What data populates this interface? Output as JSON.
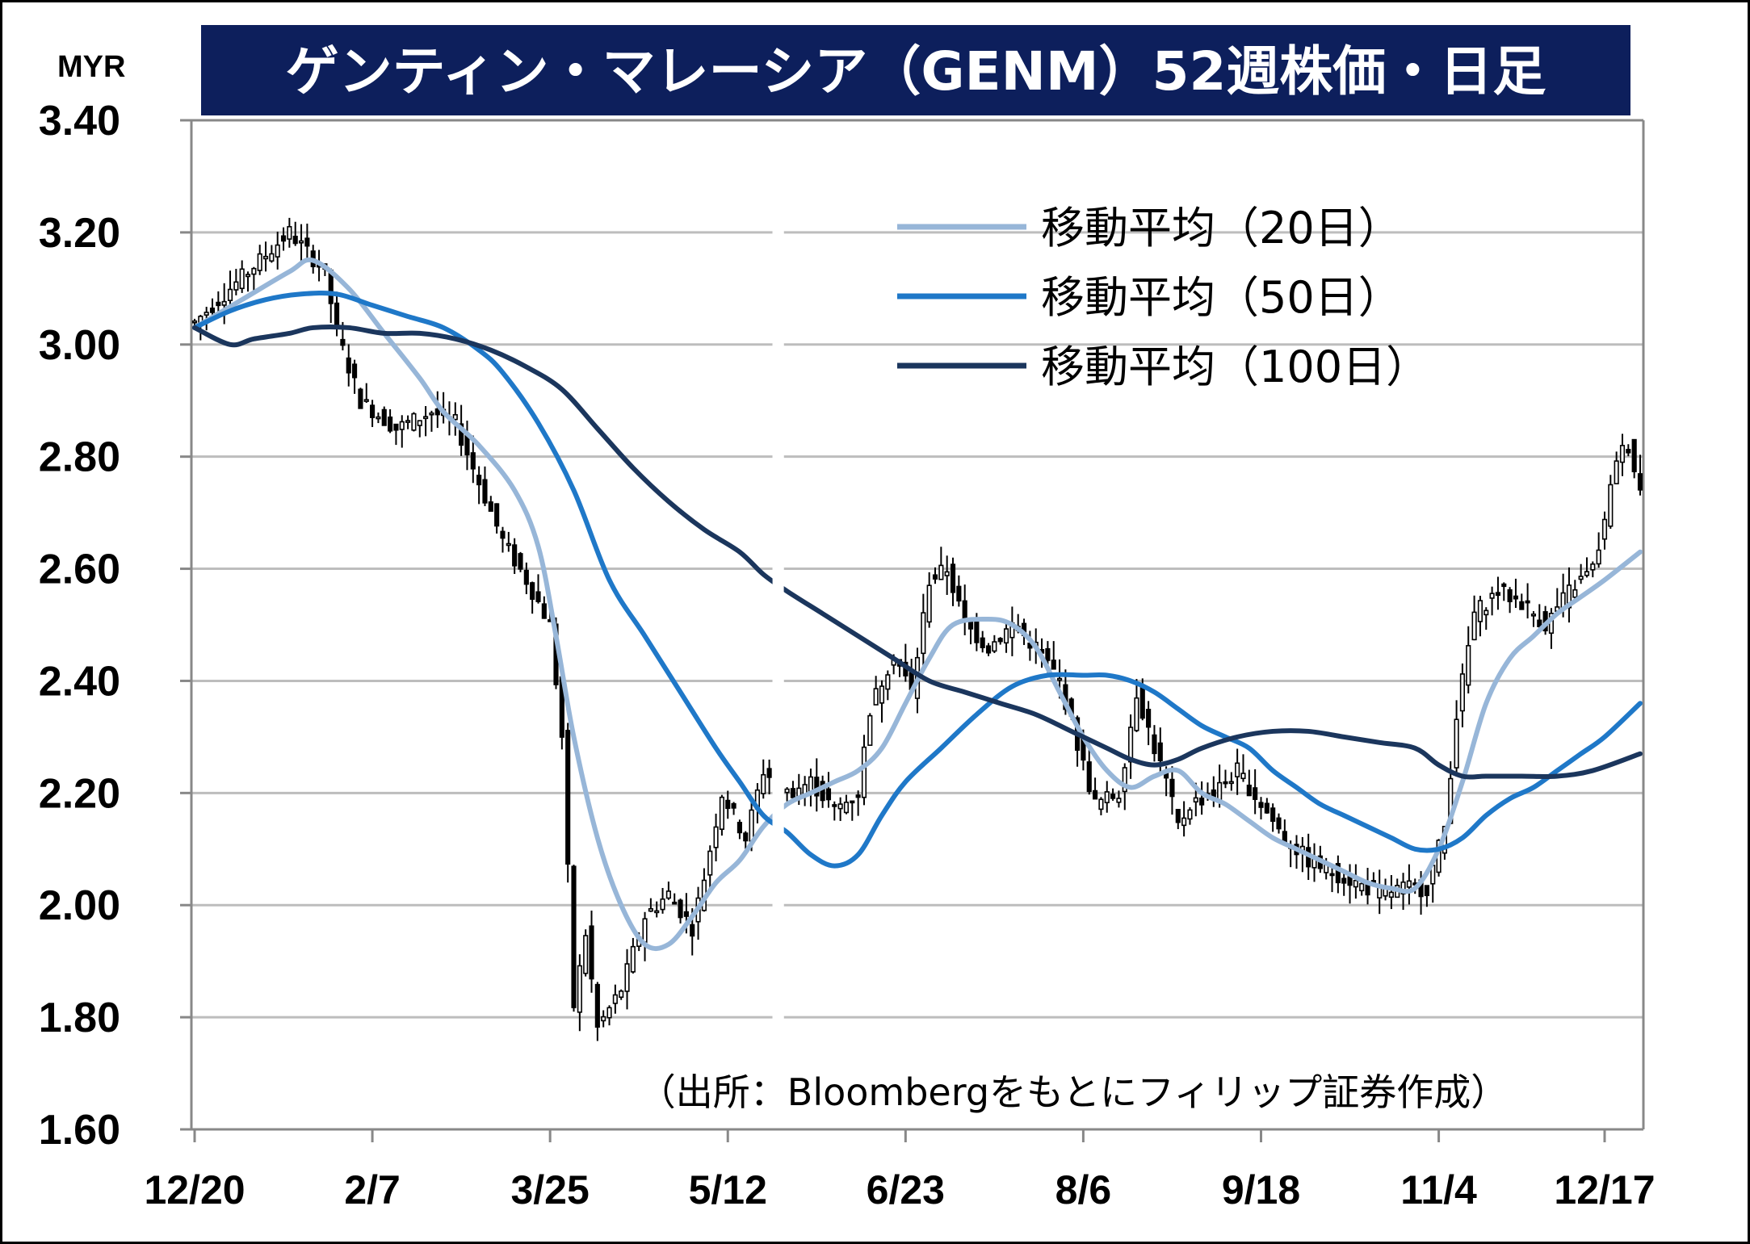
{
  "chart_data": {
    "type": "candlestick",
    "title": "ゲンティン・マレーシア（GENM）52週株価・日足",
    "unit": "MYR",
    "ylim": [
      1.6,
      3.4
    ],
    "yticks": [
      "3.40",
      "3.20",
      "3.00",
      "2.80",
      "2.60",
      "2.40",
      "2.20",
      "2.00",
      "1.80",
      "1.60"
    ],
    "xticks": [
      "12/20",
      "2/7",
      "3/25",
      "5/12",
      "6/23",
      "8/6",
      "9/18",
      "11/4",
      "12/17"
    ],
    "grid": true,
    "legend_position": "top-right",
    "source": "（出所：Bloombergをもとにフィリップ証券作成）",
    "ohlc_anchors": [
      [
        0,
        3.04
      ],
      [
        8,
        3.12
      ],
      [
        16,
        3.2
      ],
      [
        22,
        3.13
      ],
      [
        24,
        3.02
      ],
      [
        28,
        2.9
      ],
      [
        34,
        2.85
      ],
      [
        40,
        2.88
      ],
      [
        44,
        2.86
      ],
      [
        47,
        2.78
      ],
      [
        52,
        2.65
      ],
      [
        56,
        2.58
      ],
      [
        60,
        2.5
      ],
      [
        62,
        2.3
      ],
      [
        64,
        1.82
      ],
      [
        66,
        1.95
      ],
      [
        68,
        1.78
      ],
      [
        72,
        1.85
      ],
      [
        76,
        1.98
      ],
      [
        80,
        2.02
      ],
      [
        84,
        1.96
      ],
      [
        86,
        2.05
      ],
      [
        89,
        2.2
      ],
      [
        93,
        2.12
      ],
      [
        96,
        2.24
      ],
      [
        100,
        2.2
      ],
      [
        104,
        2.22
      ],
      [
        108,
        2.17
      ],
      [
        112,
        2.2
      ],
      [
        114,
        2.35
      ],
      [
        118,
        2.45
      ],
      [
        121,
        2.38
      ],
      [
        124,
        2.58
      ],
      [
        127,
        2.6
      ],
      [
        130,
        2.5
      ],
      [
        134,
        2.46
      ],
      [
        138,
        2.5
      ],
      [
        142,
        2.46
      ],
      [
        146,
        2.4
      ],
      [
        150,
        2.25
      ],
      [
        152,
        2.18
      ],
      [
        156,
        2.2
      ],
      [
        159,
        2.38
      ],
      [
        162,
        2.28
      ],
      [
        164,
        2.22
      ],
      [
        166,
        2.14
      ],
      [
        168,
        2.18
      ],
      [
        172,
        2.2
      ],
      [
        176,
        2.24
      ],
      [
        180,
        2.18
      ],
      [
        184,
        2.12
      ],
      [
        188,
        2.08
      ],
      [
        192,
        2.06
      ],
      [
        196,
        2.04
      ],
      [
        200,
        2.02
      ],
      [
        204,
        2.03
      ],
      [
        208,
        2.03
      ],
      [
        211,
        2.14
      ],
      [
        213,
        2.34
      ],
      [
        216,
        2.52
      ],
      [
        220,
        2.56
      ],
      [
        224,
        2.54
      ],
      [
        228,
        2.5
      ],
      [
        232,
        2.56
      ],
      [
        236,
        2.6
      ],
      [
        238,
        2.68
      ],
      [
        240,
        2.8
      ],
      [
        242,
        2.82
      ],
      [
        244,
        2.74
      ]
    ],
    "gap_ranges": [
      [
        97,
        100
      ]
    ],
    "series": [
      {
        "name": "移動平均（20日）",
        "color": "#97b6d8",
        "points": [
          [
            0,
            3.03
          ],
          [
            8,
            3.08
          ],
          [
            16,
            3.13
          ],
          [
            20,
            3.15
          ],
          [
            26,
            3.1
          ],
          [
            32,
            3.02
          ],
          [
            38,
            2.94
          ],
          [
            42,
            2.88
          ],
          [
            48,
            2.82
          ],
          [
            54,
            2.74
          ],
          [
            58,
            2.64
          ],
          [
            61,
            2.48
          ],
          [
            64,
            2.3
          ],
          [
            68,
            2.12
          ],
          [
            72,
            2.0
          ],
          [
            76,
            1.93
          ],
          [
            80,
            1.93
          ],
          [
            84,
            1.98
          ],
          [
            88,
            2.04
          ],
          [
            92,
            2.08
          ],
          [
            96,
            2.14
          ],
          [
            100,
            2.18
          ],
          [
            104,
            2.2
          ],
          [
            108,
            2.22
          ],
          [
            112,
            2.24
          ],
          [
            116,
            2.28
          ],
          [
            120,
            2.36
          ],
          [
            124,
            2.44
          ],
          [
            128,
            2.5
          ],
          [
            134,
            2.51
          ],
          [
            138,
            2.5
          ],
          [
            142,
            2.46
          ],
          [
            146,
            2.38
          ],
          [
            150,
            2.3
          ],
          [
            154,
            2.24
          ],
          [
            158,
            2.21
          ],
          [
            162,
            2.23
          ],
          [
            166,
            2.24
          ],
          [
            170,
            2.2
          ],
          [
            174,
            2.18
          ],
          [
            178,
            2.15
          ],
          [
            182,
            2.12
          ],
          [
            186,
            2.1
          ],
          [
            190,
            2.08
          ],
          [
            194,
            2.06
          ],
          [
            198,
            2.04
          ],
          [
            202,
            2.03
          ],
          [
            206,
            2.03
          ],
          [
            210,
            2.1
          ],
          [
            214,
            2.22
          ],
          [
            218,
            2.36
          ],
          [
            222,
            2.44
          ],
          [
            226,
            2.48
          ],
          [
            230,
            2.52
          ],
          [
            234,
            2.55
          ],
          [
            238,
            2.58
          ],
          [
            244,
            2.63
          ]
        ]
      },
      {
        "name": "移動平均（50日）",
        "color": "#1f78c8",
        "points": [
          [
            0,
            3.03
          ],
          [
            6,
            3.06
          ],
          [
            12,
            3.08
          ],
          [
            18,
            3.09
          ],
          [
            24,
            3.09
          ],
          [
            30,
            3.07
          ],
          [
            36,
            3.05
          ],
          [
            42,
            3.03
          ],
          [
            48,
            2.99
          ],
          [
            52,
            2.95
          ],
          [
            58,
            2.86
          ],
          [
            64,
            2.74
          ],
          [
            70,
            2.58
          ],
          [
            76,
            2.48
          ],
          [
            82,
            2.38
          ],
          [
            88,
            2.28
          ],
          [
            92,
            2.22
          ],
          [
            96,
            2.16
          ],
          [
            100,
            2.13
          ],
          [
            104,
            2.09
          ],
          [
            108,
            2.07
          ],
          [
            112,
            2.09
          ],
          [
            116,
            2.16
          ],
          [
            120,
            2.22
          ],
          [
            126,
            2.28
          ],
          [
            132,
            2.34
          ],
          [
            138,
            2.39
          ],
          [
            144,
            2.41
          ],
          [
            150,
            2.41
          ],
          [
            154,
            2.41
          ],
          [
            158,
            2.4
          ],
          [
            162,
            2.38
          ],
          [
            166,
            2.35
          ],
          [
            170,
            2.32
          ],
          [
            174,
            2.3
          ],
          [
            178,
            2.28
          ],
          [
            182,
            2.24
          ],
          [
            186,
            2.21
          ],
          [
            190,
            2.18
          ],
          [
            194,
            2.16
          ],
          [
            198,
            2.14
          ],
          [
            202,
            2.12
          ],
          [
            206,
            2.1
          ],
          [
            210,
            2.1
          ],
          [
            214,
            2.12
          ],
          [
            218,
            2.16
          ],
          [
            222,
            2.19
          ],
          [
            226,
            2.21
          ],
          [
            230,
            2.24
          ],
          [
            234,
            2.27
          ],
          [
            238,
            2.3
          ],
          [
            244,
            2.36
          ]
        ]
      },
      {
        "name": "移動平均（100日）",
        "color": "#1b365d",
        "points": [
          [
            0,
            3.03
          ],
          [
            6,
            3.0
          ],
          [
            10,
            3.01
          ],
          [
            16,
            3.02
          ],
          [
            20,
            3.03
          ],
          [
            26,
            3.03
          ],
          [
            32,
            3.02
          ],
          [
            38,
            3.02
          ],
          [
            44,
            3.01
          ],
          [
            50,
            2.99
          ],
          [
            56,
            2.96
          ],
          [
            62,
            2.92
          ],
          [
            68,
            2.85
          ],
          [
            74,
            2.78
          ],
          [
            80,
            2.72
          ],
          [
            86,
            2.67
          ],
          [
            92,
            2.63
          ],
          [
            96,
            2.59
          ],
          [
            100,
            2.56
          ],
          [
            106,
            2.52
          ],
          [
            112,
            2.48
          ],
          [
            118,
            2.44
          ],
          [
            124,
            2.4
          ],
          [
            130,
            2.38
          ],
          [
            136,
            2.36
          ],
          [
            142,
            2.34
          ],
          [
            148,
            2.31
          ],
          [
            154,
            2.28
          ],
          [
            158,
            2.26
          ],
          [
            162,
            2.25
          ],
          [
            166,
            2.26
          ],
          [
            170,
            2.28
          ],
          [
            176,
            2.3
          ],
          [
            182,
            2.31
          ],
          [
            188,
            2.31
          ],
          [
            194,
            2.3
          ],
          [
            200,
            2.29
          ],
          [
            206,
            2.28
          ],
          [
            210,
            2.25
          ],
          [
            214,
            2.23
          ],
          [
            218,
            2.23
          ],
          [
            224,
            2.23
          ],
          [
            230,
            2.23
          ],
          [
            236,
            2.24
          ],
          [
            244,
            2.27
          ]
        ]
      }
    ]
  }
}
